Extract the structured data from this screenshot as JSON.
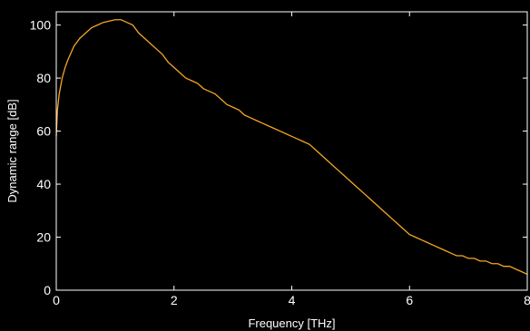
{
  "chart_data": {
    "type": "line",
    "title": "",
    "xlabel": "Frequency [THz]",
    "ylabel": "Dynamic range [dB]",
    "xlim": [
      0,
      8
    ],
    "ylim": [
      0,
      105
    ],
    "xticks": [
      0,
      2,
      4,
      6,
      8
    ],
    "yticks": [
      0,
      20,
      40,
      60,
      80,
      100
    ],
    "grid": false,
    "background": "#000000",
    "axis_color": "#ffffff",
    "series": [
      {
        "color": "#f5a623",
        "x": [
          0.0,
          0.02,
          0.05,
          0.1,
          0.15,
          0.2,
          0.3,
          0.4,
          0.5,
          0.6,
          0.7,
          0.8,
          0.9,
          1.0,
          1.1,
          1.2,
          1.3,
          1.4,
          1.5,
          1.6,
          1.7,
          1.8,
          1.9,
          2.0,
          2.1,
          2.2,
          2.3,
          2.4,
          2.5,
          2.6,
          2.7,
          2.8,
          2.9,
          3.0,
          3.1,
          3.2,
          3.3,
          3.4,
          3.5,
          3.6,
          3.7,
          3.8,
          3.9,
          4.0,
          4.1,
          4.2,
          4.3,
          4.4,
          4.5,
          4.6,
          4.7,
          4.8,
          4.9,
          5.0,
          5.1,
          5.2,
          5.3,
          5.4,
          5.5,
          5.6,
          5.7,
          5.8,
          5.9,
          6.0,
          6.1,
          6.2,
          6.3,
          6.4,
          6.5,
          6.6,
          6.7,
          6.8,
          6.9,
          7.0,
          7.1,
          7.2,
          7.3,
          7.4,
          7.5,
          7.6,
          7.7,
          7.8,
          7.9,
          8.0
        ],
        "y": [
          58,
          68,
          74,
          80,
          84,
          87,
          92,
          95,
          97,
          99,
          100,
          101,
          101.5,
          102,
          102,
          101,
          100,
          97,
          95,
          93,
          91,
          89,
          86,
          84,
          82,
          80,
          79,
          78,
          76,
          75,
          74,
          72,
          70,
          69,
          68,
          66,
          65,
          64,
          63,
          62,
          61,
          60,
          59,
          58,
          57,
          56,
          55,
          53,
          51,
          49,
          47,
          45,
          43,
          41,
          39,
          37,
          35,
          33,
          31,
          29,
          27,
          25,
          23,
          21,
          20,
          19,
          18,
          17,
          16,
          15,
          14,
          13,
          13,
          12,
          12,
          11,
          11,
          10,
          10,
          9,
          9,
          8,
          7,
          6
        ]
      }
    ]
  }
}
